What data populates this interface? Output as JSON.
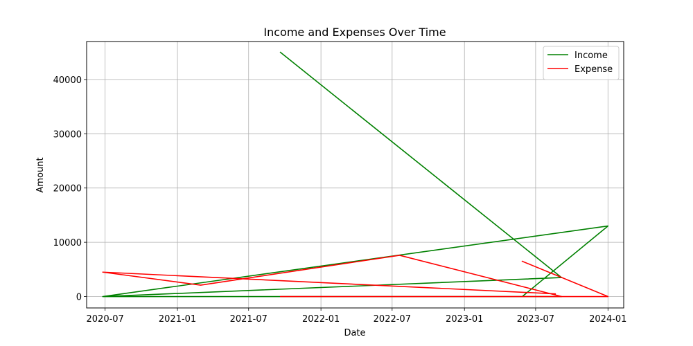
{
  "chart_data": {
    "type": "line",
    "title": "Income and Expenses Over Time",
    "xlabel": "Date",
    "ylabel": "Amount",
    "x_axis_type": "date",
    "xlim": [
      "2020-05-15",
      "2024-02-10"
    ],
    "ylim": [
      -2100,
      47000
    ],
    "x_ticks": [
      "2020-07-01",
      "2021-01-01",
      "2021-07-01",
      "2022-01-01",
      "2022-07-01",
      "2023-01-01",
      "2023-07-01",
      "2024-01-01"
    ],
    "x_tick_labels": [
      "2020-07",
      "2021-01",
      "2021-07",
      "2022-01",
      "2022-07",
      "2023-01",
      "2023-07",
      "2024-01"
    ],
    "y_ticks": [
      0,
      10000,
      20000,
      30000,
      40000
    ],
    "y_tick_labels": [
      "0",
      "10000",
      "20000",
      "30000",
      "40000"
    ],
    "grid": true,
    "legend_position": "top-right",
    "series": [
      {
        "name": "Income",
        "color": "#008000",
        "points": [
          {
            "x": "2021-09-20",
            "y": 45000
          },
          {
            "x": "2023-09-05",
            "y": 3500
          },
          {
            "x": "2020-06-25",
            "y": 0
          },
          {
            "x": "2024-01-01",
            "y": 13000
          },
          {
            "x": "2023-05-28",
            "y": 0
          },
          {
            "x": "2023-09-05",
            "y": 0
          },
          {
            "x": "2020-06-25",
            "y": 0
          },
          {
            "x": "2021-09-20",
            "y": 0
          },
          {
            "x": "2022-07-20",
            "y": 0
          },
          {
            "x": "2022-07-20",
            "y": 0
          }
        ]
      },
      {
        "name": "Expense",
        "color": "#ff0000",
        "points": [
          {
            "x": "2023-05-28",
            "y": 6500
          },
          {
            "x": "2024-01-01",
            "y": 0
          },
          {
            "x": "2021-09-20",
            "y": 0
          },
          {
            "x": "2023-09-05",
            "y": 0
          },
          {
            "x": "2022-07-20",
            "y": 7600
          },
          {
            "x": "2021-03-01",
            "y": 2100
          },
          {
            "x": "2020-06-25",
            "y": 4500
          },
          {
            "x": "2023-08-20",
            "y": 500
          }
        ]
      }
    ]
  }
}
